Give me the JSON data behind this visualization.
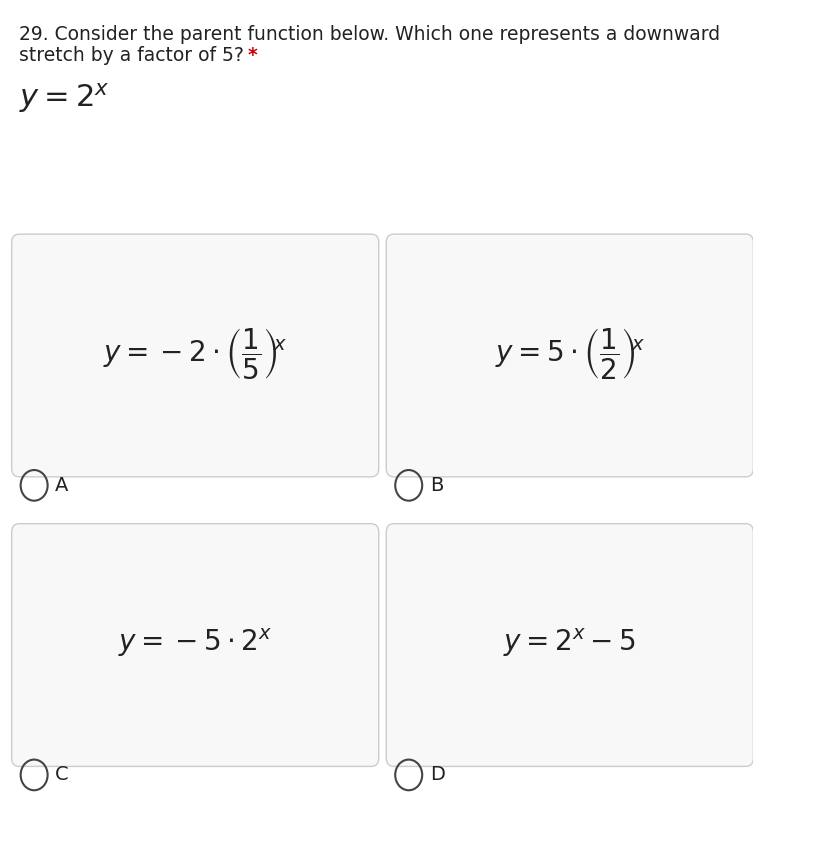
{
  "title_line1": "29. Consider the parent function below. Which one represents a downward",
  "title_line2": "stretch by a factor of 5? *",
  "asterisk_color": "#cc0000",
  "parent_function": "y = 2^{x}",
  "option_A_formula": "y = -2 \\cdot \\left(\\dfrac{1}{5}\\right)^{x}",
  "option_B_formula": "y = 5 \\cdot \\left(\\dfrac{1}{2}\\right)^{x}",
  "option_C_formula": "y = -5 \\cdot 2^{x}",
  "option_D_formula": "y = 2^{x} - 5",
  "label_A": "A",
  "label_B": "B",
  "label_C": "C",
  "label_D": "D",
  "background_color": "#ffffff",
  "box_fill_color": "#f8f8f8",
  "box_edge_color": "#cccccc",
  "text_color": "#222222",
  "formula_fontsize": 20,
  "label_fontsize": 14,
  "title_fontsize": 13.5
}
